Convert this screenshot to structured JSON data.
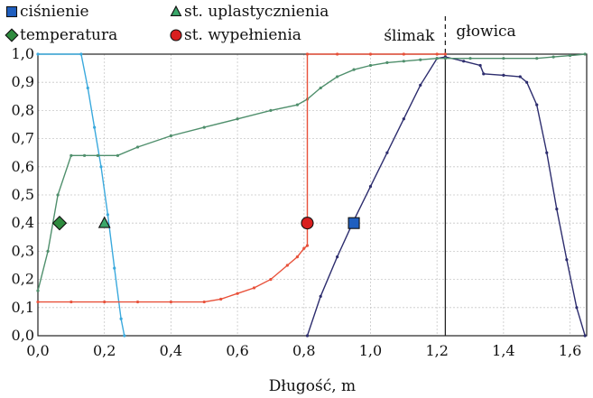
{
  "chart_data": {
    "type": "line",
    "title": "",
    "xlabel": "Długość, m",
    "ylabel": "",
    "xlim": [
      0,
      1.65
    ],
    "ylim": [
      0,
      1.0
    ],
    "x_ticks": [
      {
        "value": 0,
        "label": "0,0"
      },
      {
        "value": 0.2,
        "label": "0,2"
      },
      {
        "value": 0.4,
        "label": "0,4"
      },
      {
        "value": 0.6,
        "label": "0,6"
      },
      {
        "value": 0.8,
        "label": "0,8"
      },
      {
        "value": 1.0,
        "label": "1,0"
      },
      {
        "value": 1.2,
        "label": "1,2"
      },
      {
        "value": 1.4,
        "label": "1,4"
      },
      {
        "value": 1.6,
        "label": "1,6"
      }
    ],
    "y_ticks": [
      {
        "value": 0.0,
        "label": "0,0"
      },
      {
        "value": 0.1,
        "label": "0,1"
      },
      {
        "value": 0.2,
        "label": "0,2"
      },
      {
        "value": 0.3,
        "label": "0,3"
      },
      {
        "value": 0.4,
        "label": "0,4"
      },
      {
        "value": 0.5,
        "label": "0,5"
      },
      {
        "value": 0.6,
        "label": "0,6"
      },
      {
        "value": 0.7,
        "label": "0,7"
      },
      {
        "value": 0.8,
        "label": "0,8"
      },
      {
        "value": 0.9,
        "label": "0,9"
      },
      {
        "value": 1.0,
        "label": "1,0"
      }
    ],
    "grid": true,
    "legend_position": "top-left",
    "regions": {
      "left_label": "ślimak",
      "right_label": "głowica",
      "boundary_x": 1.225
    },
    "series": [
      {
        "name": "ciśnienie",
        "color": "#2d2d6e",
        "marker": "square",
        "marker_color": "#1f5fbf",
        "marker_x": 0.95,
        "marker_y": 0.4,
        "x": [
          0.81,
          0.85,
          0.9,
          0.95,
          1.0,
          1.05,
          1.1,
          1.15,
          1.2,
          1.225,
          1.28,
          1.33,
          1.34,
          1.4,
          1.45,
          1.47,
          1.5,
          1.53,
          1.56,
          1.59,
          1.62,
          1.645
        ],
        "y": [
          0.0,
          0.14,
          0.28,
          0.41,
          0.53,
          0.65,
          0.77,
          0.89,
          0.985,
          0.99,
          0.975,
          0.96,
          0.93,
          0.925,
          0.92,
          0.9,
          0.82,
          0.65,
          0.45,
          0.27,
          0.1,
          0.0
        ]
      },
      {
        "name": "st. uplastycznienia",
        "color": "#3aa9dd",
        "marker": "triangle",
        "marker_color": "#3aa76a",
        "marker_x": 0.2,
        "marker_y": 0.4,
        "x": [
          0.0,
          0.13,
          0.15,
          0.17,
          0.19,
          0.21,
          0.23,
          0.25,
          0.26
        ],
        "y": [
          1.0,
          1.0,
          0.88,
          0.74,
          0.6,
          0.43,
          0.24,
          0.06,
          0.0
        ]
      },
      {
        "name": "temperatura",
        "color": "#4f8f6c",
        "marker": "diamond",
        "marker_color": "#2e8b3e",
        "marker_x": 0.065,
        "marker_y": 0.4,
        "x": [
          0.0,
          0.03,
          0.06,
          0.1,
          0.14,
          0.18,
          0.24,
          0.3,
          0.4,
          0.5,
          0.6,
          0.7,
          0.78,
          0.81,
          0.85,
          0.9,
          0.95,
          1.0,
          1.05,
          1.1,
          1.15,
          1.2,
          1.225,
          1.3,
          1.4,
          1.5,
          1.55,
          1.6,
          1.645
        ],
        "y": [
          0.16,
          0.3,
          0.5,
          0.64,
          0.64,
          0.64,
          0.64,
          0.67,
          0.71,
          0.74,
          0.77,
          0.8,
          0.82,
          0.84,
          0.88,
          0.92,
          0.945,
          0.96,
          0.97,
          0.975,
          0.98,
          0.985,
          0.985,
          0.985,
          0.985,
          0.985,
          0.99,
          0.995,
          1.0
        ]
      },
      {
        "name": "st. wypełnienia",
        "color": "#e8513a",
        "marker": "circle",
        "marker_color": "#d91f1f",
        "marker_x": 0.81,
        "marker_y": 0.4,
        "x": [
          0.0,
          0.1,
          0.2,
          0.3,
          0.4,
          0.5,
          0.55,
          0.6,
          0.65,
          0.7,
          0.75,
          0.78,
          0.8,
          0.81,
          0.81,
          0.9,
          1.0,
          1.1,
          1.2,
          1.225
        ],
        "y": [
          0.12,
          0.12,
          0.12,
          0.12,
          0.12,
          0.12,
          0.13,
          0.15,
          0.17,
          0.2,
          0.25,
          0.28,
          0.31,
          0.32,
          1.0,
          1.0,
          1.0,
          1.0,
          1.0,
          1.0
        ]
      }
    ]
  }
}
